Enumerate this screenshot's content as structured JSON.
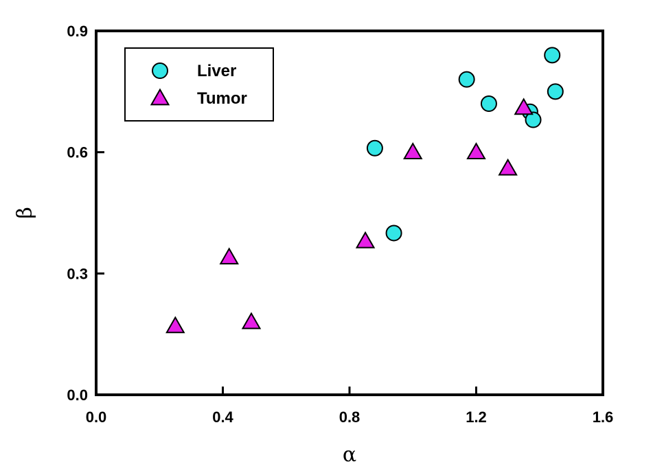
{
  "chart_data": {
    "type": "scatter",
    "xlabel": "α",
    "ylabel": "β",
    "xlim": [
      0.0,
      1.6
    ],
    "ylim": [
      0.0,
      0.9
    ],
    "xticks": [
      "0.0",
      "0.4",
      "0.8",
      "1.2",
      "1.6"
    ],
    "yticks": [
      "0.0",
      "0.3",
      "0.6",
      "0.9"
    ],
    "grid": false,
    "legend_position": "top-left",
    "series": [
      {
        "name": "Liver",
        "marker": "circle",
        "color": "#33e6e6",
        "points": [
          {
            "x": 0.88,
            "y": 0.61
          },
          {
            "x": 0.94,
            "y": 0.4
          },
          {
            "x": 1.17,
            "y": 0.78
          },
          {
            "x": 1.24,
            "y": 0.72
          },
          {
            "x": 1.37,
            "y": 0.7
          },
          {
            "x": 1.38,
            "y": 0.68
          },
          {
            "x": 1.44,
            "y": 0.84
          },
          {
            "x": 1.45,
            "y": 0.75
          }
        ]
      },
      {
        "name": "Tumor",
        "marker": "triangle",
        "color": "#e61ee6",
        "points": [
          {
            "x": 0.25,
            "y": 0.17
          },
          {
            "x": 0.42,
            "y": 0.34
          },
          {
            "x": 0.49,
            "y": 0.18
          },
          {
            "x": 0.85,
            "y": 0.38
          },
          {
            "x": 1.0,
            "y": 0.6
          },
          {
            "x": 1.2,
            "y": 0.6
          },
          {
            "x": 1.3,
            "y": 0.56
          },
          {
            "x": 1.35,
            "y": 0.71
          }
        ]
      }
    ]
  }
}
